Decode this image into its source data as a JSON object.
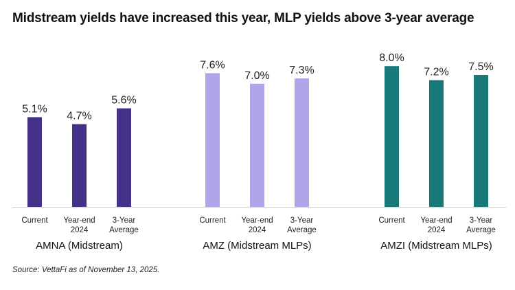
{
  "title": "Midstream yields have increased this year, MLP yields above 3-year average",
  "source": "Source: VettaFi as of November 13, 2025.",
  "chart_data": {
    "type": "bar",
    "ylim": [
      0,
      8.6
    ],
    "grid": false,
    "groups": [
      {
        "name": "AMNA (Midstream)",
        "color": "#46318a",
        "categories": [
          [
            "Current"
          ],
          [
            "Year-end",
            "2024"
          ],
          [
            "3-Year",
            "Average"
          ]
        ],
        "values": [
          5.1,
          4.7,
          5.6
        ],
        "labels": [
          "5.1%",
          "4.7%",
          "5.6%"
        ]
      },
      {
        "name": "AMZ (Midstream MLPs)",
        "color": "#b1a4e9",
        "categories": [
          [
            "Current"
          ],
          [
            "Year-end",
            "2024"
          ],
          [
            "3-Year",
            "Average"
          ]
        ],
        "values": [
          7.6,
          7.0,
          7.3
        ],
        "labels": [
          "7.6%",
          "7.0%",
          "7.3%"
        ]
      },
      {
        "name": "AMZI (Midstream MLPs)",
        "color": "#177a78",
        "categories": [
          [
            "Current"
          ],
          [
            "Year-end",
            "2024"
          ],
          [
            "3-Year",
            "Average"
          ]
        ],
        "values": [
          8.0,
          7.2,
          7.5
        ],
        "labels": [
          "8.0%",
          "7.2%",
          "7.5%"
        ]
      }
    ]
  }
}
